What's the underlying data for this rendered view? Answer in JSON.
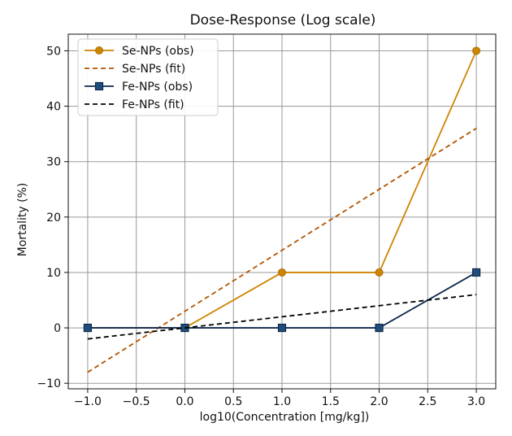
{
  "chart_data": {
    "type": "line",
    "title": "Dose-Response (Log scale)",
    "xlabel": "log10(Concentration [mg/kg])",
    "ylabel": "Mortality (%)",
    "xlim": [
      -1.2,
      3.2
    ],
    "ylim": [
      -11,
      53
    ],
    "xticks": [
      -1.0,
      -0.5,
      0.0,
      0.5,
      1.0,
      1.5,
      2.0,
      2.5,
      3.0
    ],
    "xtick_labels": [
      "−1.0",
      "−0.5",
      "0.0",
      "0.5",
      "1.0",
      "1.5",
      "2.0",
      "2.5",
      "3.0"
    ],
    "yticks": [
      -10,
      0,
      10,
      20,
      30,
      40,
      50
    ],
    "ytick_labels": [
      "−10",
      "0",
      "10",
      "20",
      "30",
      "40",
      "50"
    ],
    "grid": true,
    "legend_position": "top-left",
    "series": [
      {
        "name": "Se-NPs (obs)",
        "style": "solid",
        "marker": "circle",
        "color": "#cc8500",
        "x": [
          -1.0,
          0.0,
          1.0,
          2.0,
          3.0
        ],
        "y": [
          0,
          0,
          10,
          10,
          50
        ]
      },
      {
        "name": "Se-NPs (fit)",
        "style": "dashed",
        "marker": "none",
        "color": "#b35400",
        "x": [
          -1.0,
          3.0
        ],
        "y": [
          -8,
          36
        ]
      },
      {
        "name": "Fe-NPs (obs)",
        "style": "solid",
        "marker": "square",
        "color": "#0f2a4f",
        "x": [
          -1.0,
          0.0,
          1.0,
          2.0,
          3.0
        ],
        "y": [
          0,
          0,
          0,
          0,
          10
        ]
      },
      {
        "name": "Fe-NPs (fit)",
        "style": "dashed",
        "marker": "none",
        "color": "#000000",
        "x": [
          -1.0,
          3.0
        ],
        "y": [
          -2,
          6
        ]
      }
    ]
  }
}
